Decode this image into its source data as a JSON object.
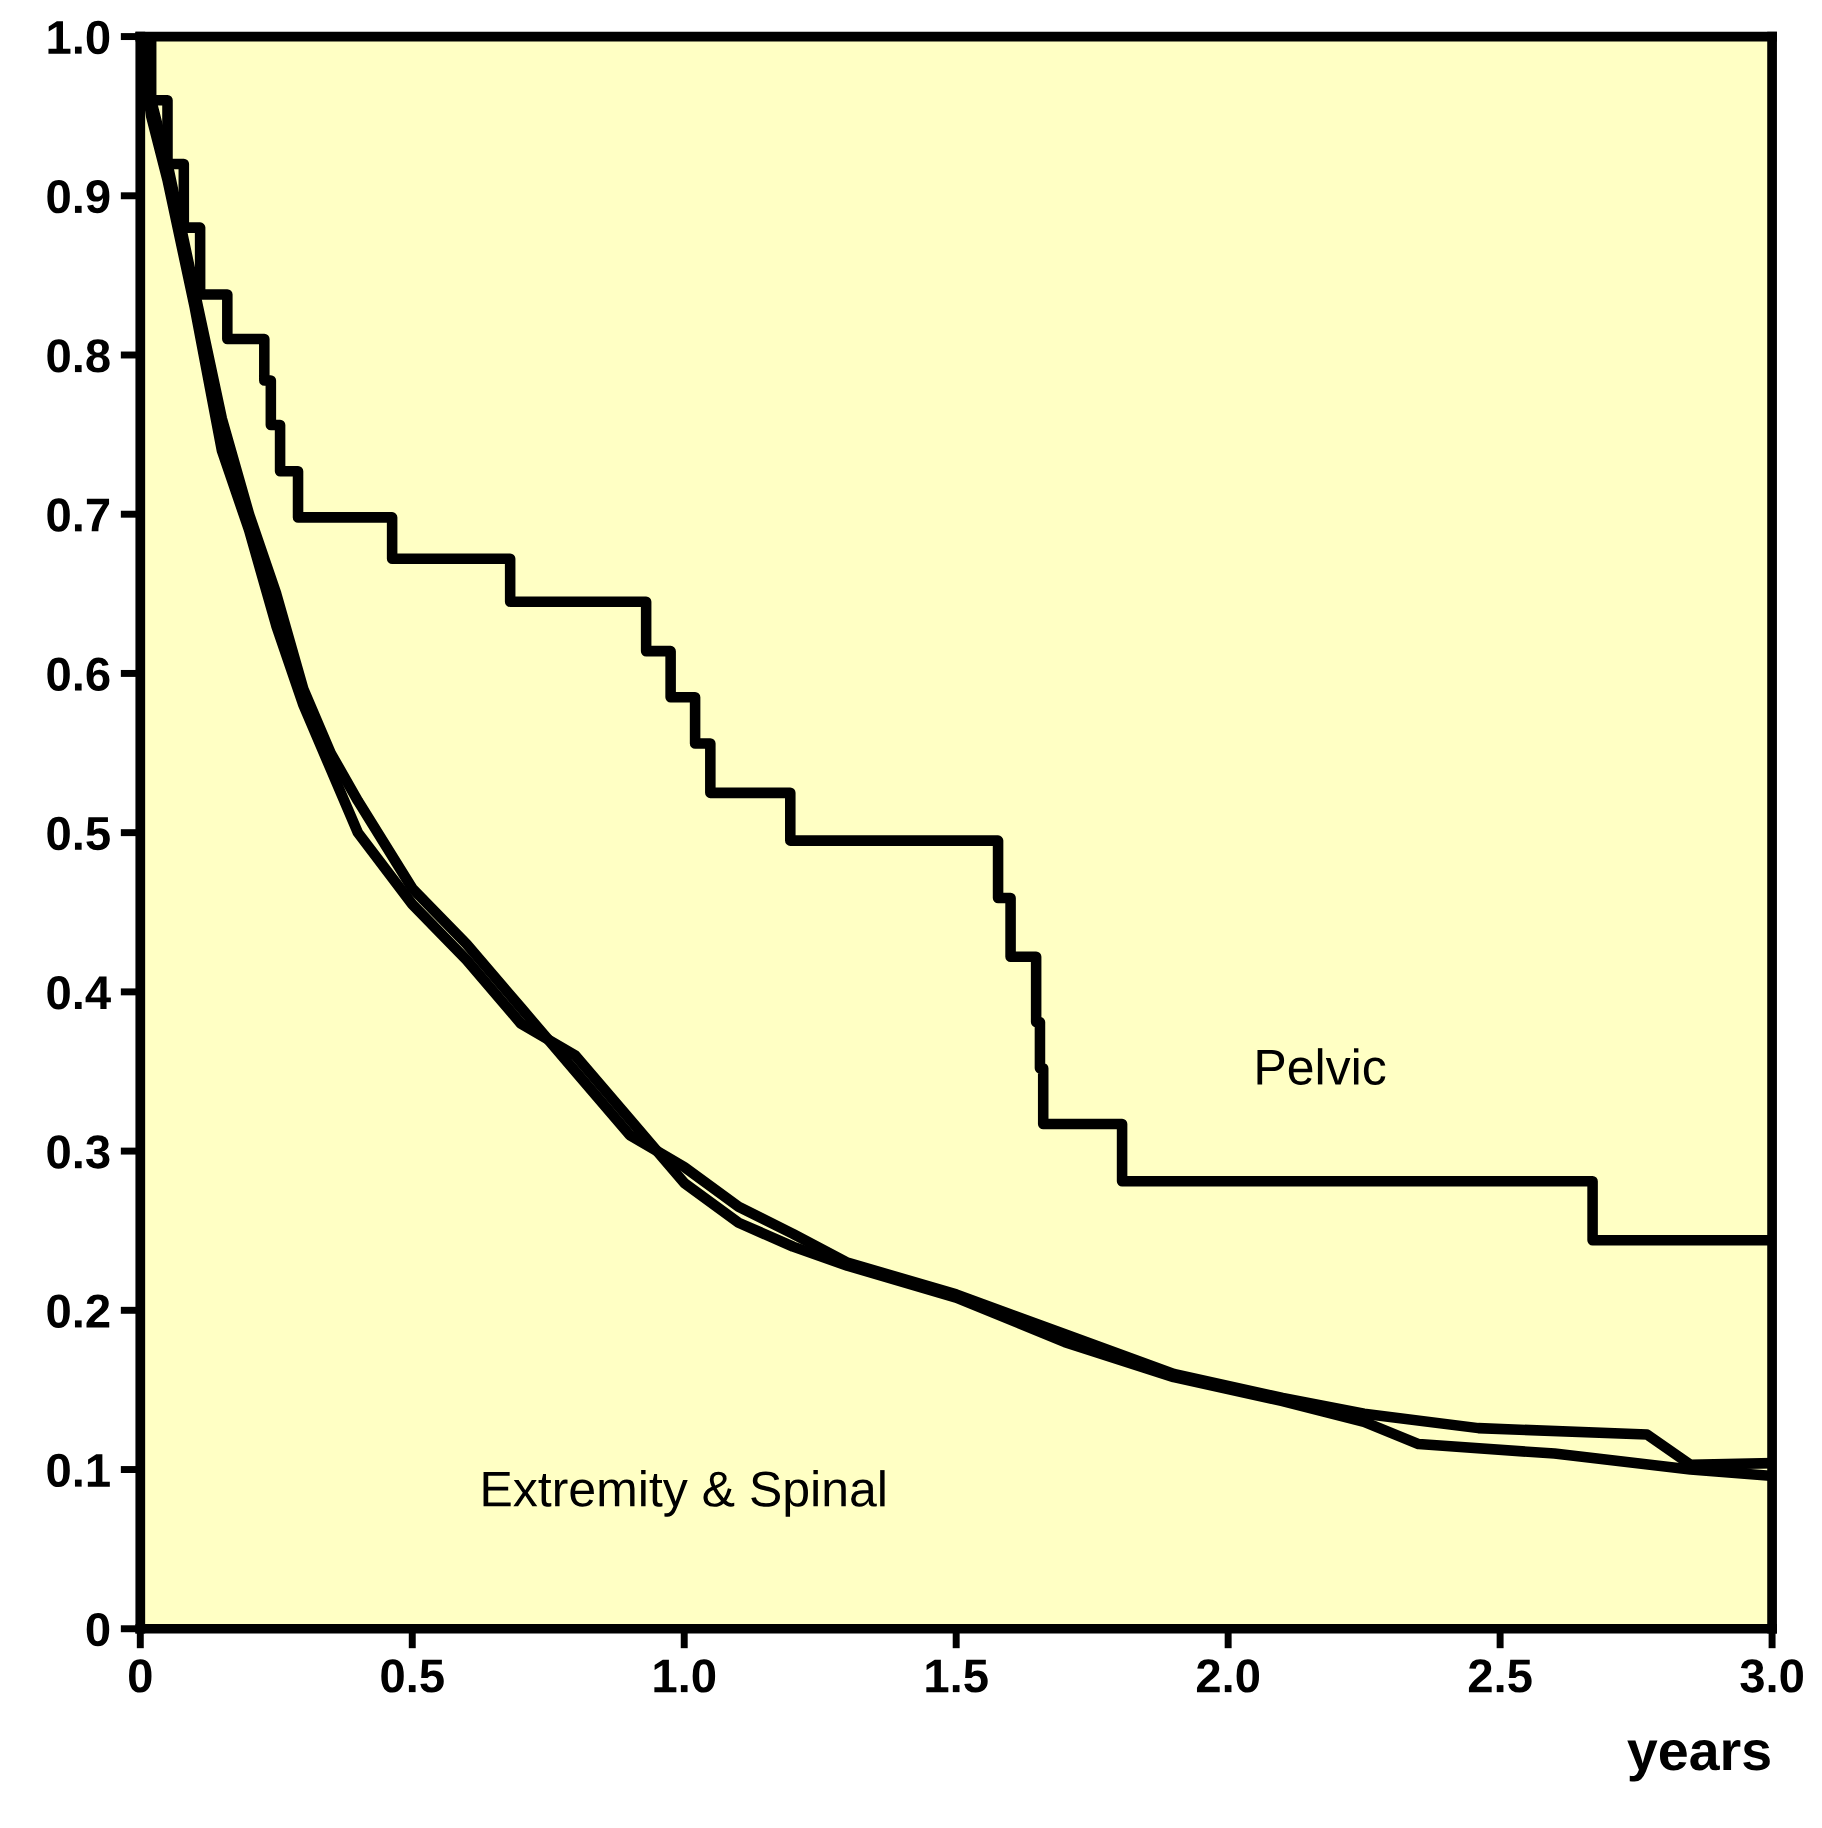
{
  "chart_data": {
    "type": "step",
    "xlabel": "years",
    "xlim": [
      0,
      3.0
    ],
    "xticks": [
      0,
      0.5,
      {
        "value": 1,
        "label": "1.0"
      },
      1.5,
      {
        "value": 2,
        "label": "2.0"
      },
      2.5,
      {
        "value": 3,
        "label": "3.0"
      }
    ],
    "ylim": [
      0,
      1.0
    ],
    "yticks": [
      0,
      0.1,
      0.2,
      0.3,
      0.4,
      0.5,
      0.6,
      0.7,
      0.8,
      0.9,
      {
        "value": 1,
        "label": "1.0"
      }
    ],
    "grid": false,
    "legend": false,
    "line_style": "solid",
    "marker": "none",
    "series": [
      {
        "color": "#000000",
        "x": [
          0,
          0.02,
          0.05,
          0.08,
          0.11,
          0.16,
          0.228,
          0.24,
          0.257,
          0.29,
          0.463,
          0.68,
          0.93,
          0.975,
          1.02,
          1.048,
          1.195,
          1.577,
          1.6,
          1.647,
          1.654,
          1.66,
          1.805,
          2.67,
          3.0
        ],
        "values": [
          1.0,
          0.96,
          0.92,
          0.88,
          0.838,
          0.81,
          0.784,
          0.756,
          0.727,
          0.698,
          0.672,
          0.645,
          0.614,
          0.585,
          0.556,
          0.525,
          0.495,
          0.459,
          0.422,
          0.381,
          0.352,
          0.317,
          0.281,
          0.244,
          0.244
        ]
      },
      {
        "type": "line",
        "color": "#000000",
        "x": [
          0,
          0.02,
          0.05,
          0.1,
          0.15,
          0.2,
          0.25,
          0.3,
          0.35,
          0.4,
          0.5,
          0.6,
          0.7,
          0.8,
          0.9,
          1.0,
          1.1,
          1.2,
          1.3,
          1.5,
          1.7,
          1.9,
          2.1,
          2.25,
          2.46,
          2.77,
          2.85,
          3.0
        ],
        "values": [
          0.99,
          0.96,
          0.92,
          0.84,
          0.76,
          0.7,
          0.65,
          0.59,
          0.55,
          0.52,
          0.465,
          0.43,
          0.39,
          0.35,
          0.31,
          0.29,
          0.265,
          0.248,
          0.23,
          0.21,
          0.185,
          0.16,
          0.145,
          0.135,
          0.126,
          0.122,
          0.103,
          0.104
        ]
      },
      {
        "type": "line",
        "color": "#000000",
        "x": [
          0,
          0.02,
          0.05,
          0.1,
          0.15,
          0.2,
          0.25,
          0.3,
          0.35,
          0.4,
          0.5,
          0.6,
          0.7,
          0.8,
          0.9,
          1.0,
          1.1,
          1.2,
          1.3,
          1.5,
          1.7,
          1.9,
          2.1,
          2.25,
          2.35,
          2.6,
          2.85,
          3.0
        ],
        "values": [
          1.0,
          0.95,
          0.91,
          0.83,
          0.74,
          0.69,
          0.63,
          0.58,
          0.54,
          0.5,
          0.455,
          0.42,
          0.38,
          0.36,
          0.32,
          0.28,
          0.255,
          0.24,
          0.228,
          0.208,
          0.18,
          0.158,
          0.143,
          0.13,
          0.116,
          0.11,
          0.1,
          0.096
        ]
      }
    ],
    "annotations": [
      "Pelvic",
      "Extremity & Spinal"
    ]
  }
}
